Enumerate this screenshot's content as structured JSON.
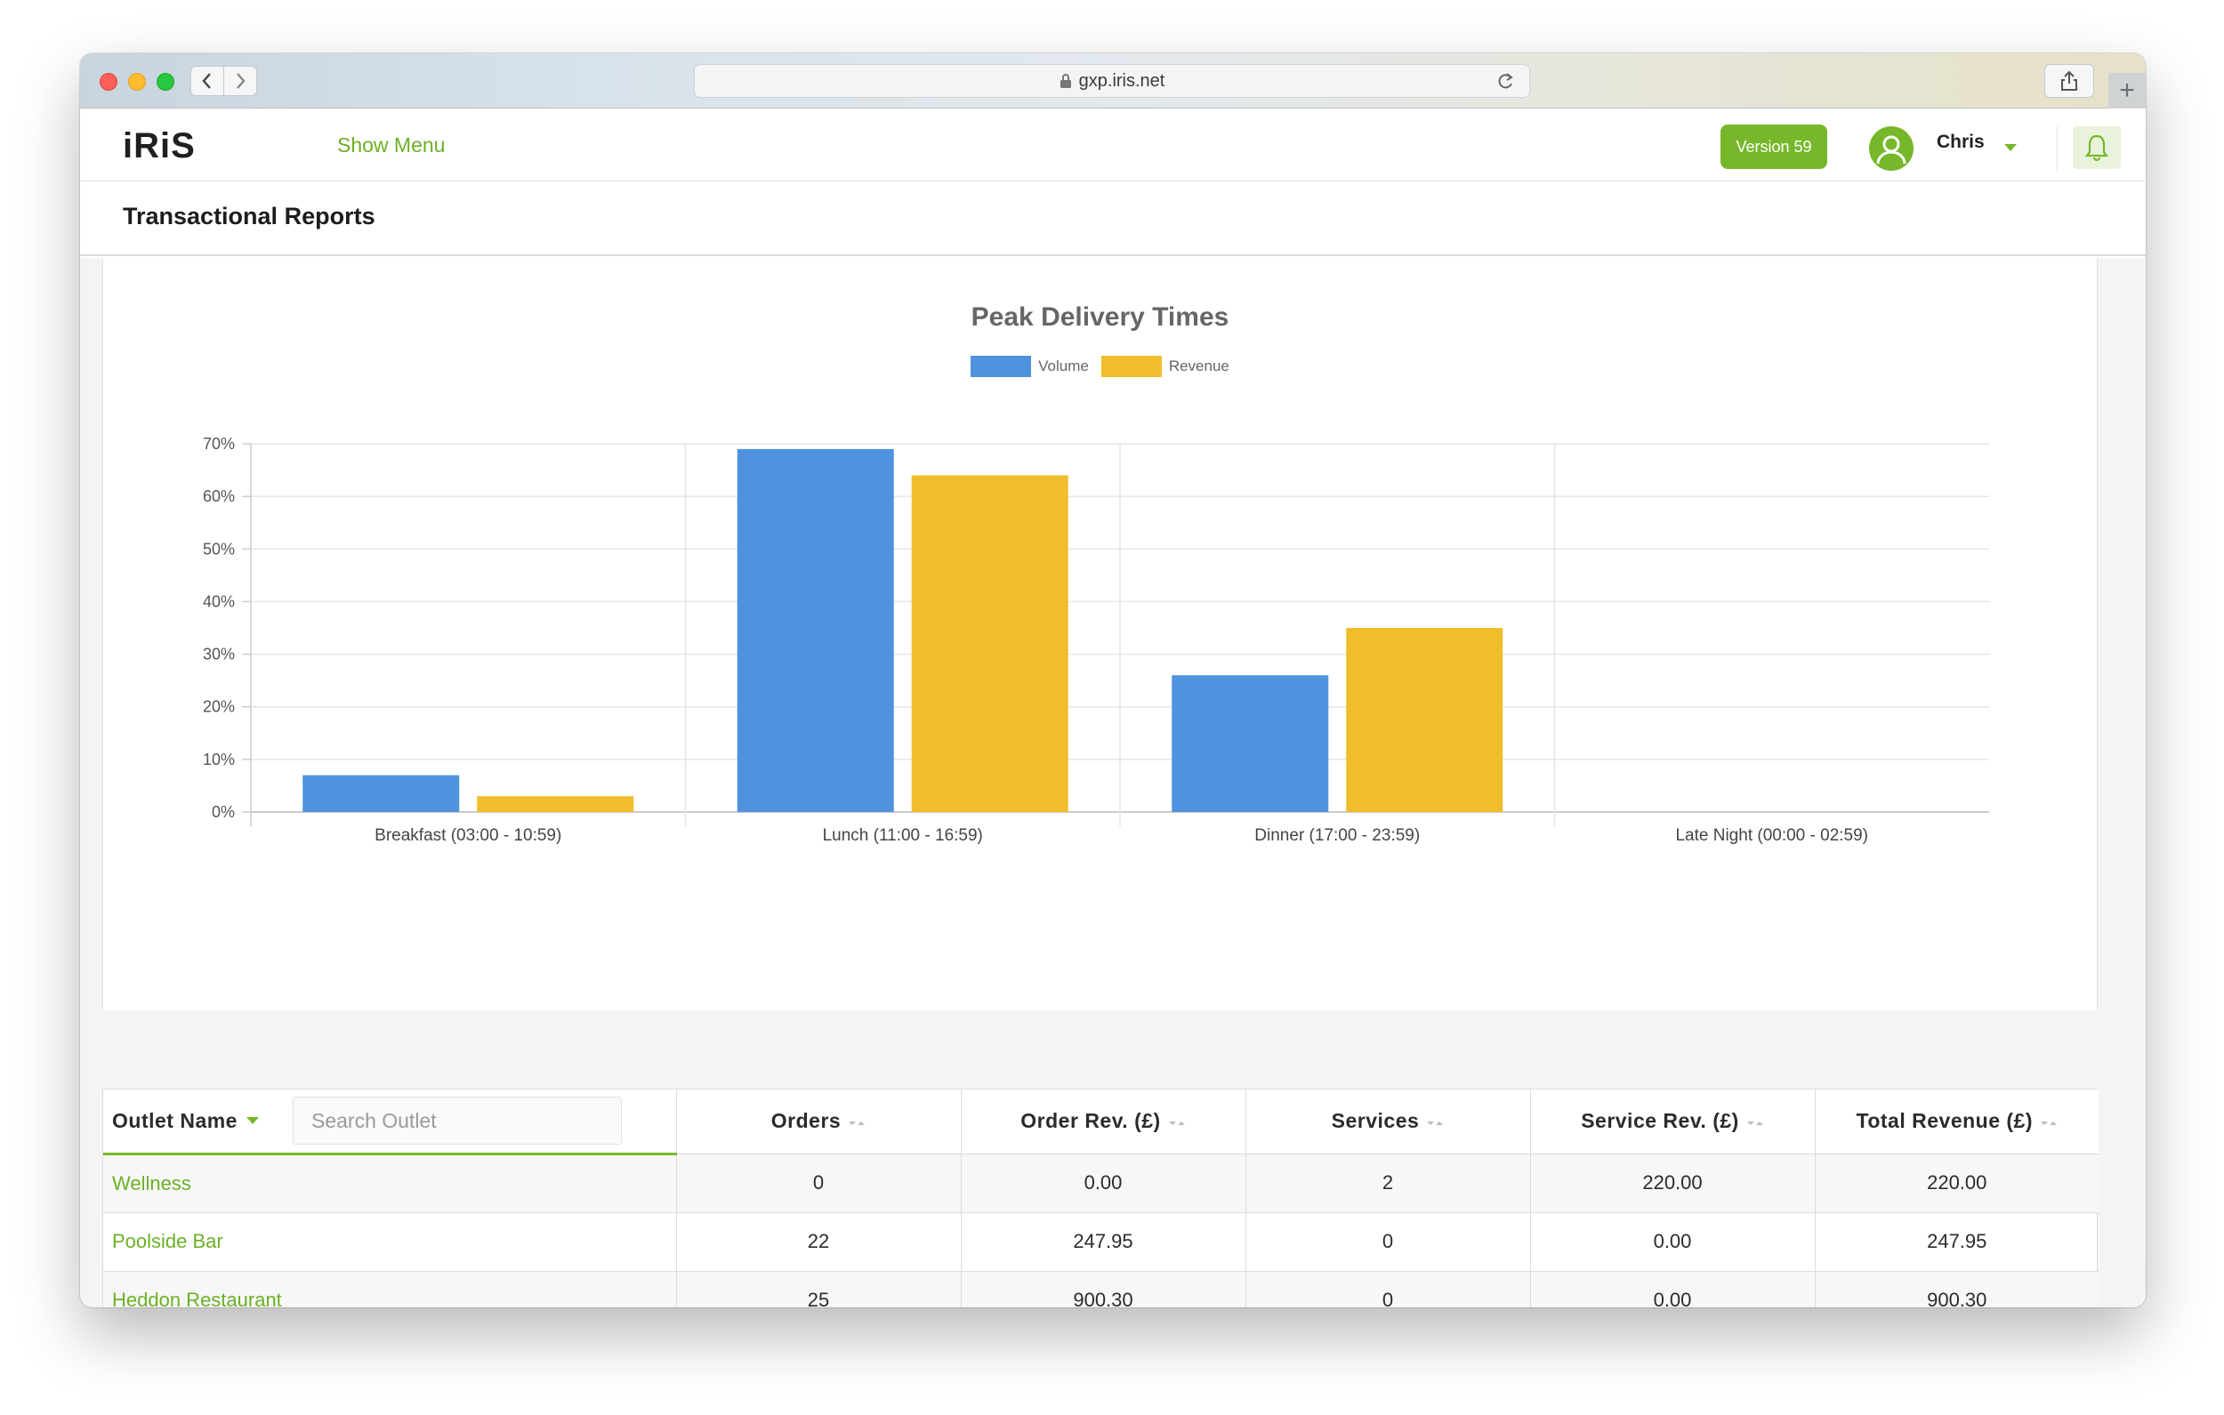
{
  "browser": {
    "url": "gxp.iris.net"
  },
  "header": {
    "logo": "iRiS",
    "show_menu": "Show Menu",
    "version": "Version 59",
    "user": "Chris"
  },
  "page": {
    "title": "Transactional Reports"
  },
  "colors": {
    "accent": "#76b82a",
    "volume": "#4f93de",
    "revenue": "#f0bd2c"
  },
  "chart_data": {
    "type": "bar",
    "title": "Peak Delivery Times",
    "categories": [
      "Breakfast (03:00 - 10:59)",
      "Lunch (11:00 - 16:59)",
      "Dinner (17:00 - 23:59)",
      "Late Night (00:00 - 02:59)"
    ],
    "series": [
      {
        "name": "Volume",
        "values": [
          7,
          69,
          26,
          0
        ]
      },
      {
        "name": "Revenue",
        "values": [
          3,
          64,
          35,
          0
        ]
      }
    ],
    "ylim": [
      0,
      70
    ],
    "yticks": [
      "0%",
      "10%",
      "20%",
      "30%",
      "40%",
      "50%",
      "60%",
      "70%"
    ],
    "legend": "top"
  },
  "table": {
    "outlet_header": "Outlet Name",
    "search_placeholder": "Search Outlet",
    "columns": [
      "Orders",
      "Order Rev. (£)",
      "Services",
      "Service Rev. (£)",
      "Total Revenue (£)"
    ],
    "rows": [
      {
        "outlet": "Wellness",
        "orders": "0",
        "order_rev": "0.00",
        "services": "2",
        "service_rev": "220.00",
        "total": "220.00"
      },
      {
        "outlet": "Poolside Bar",
        "orders": "22",
        "order_rev": "247.95",
        "services": "0",
        "service_rev": "0.00",
        "total": "247.95"
      },
      {
        "outlet": "Heddon Restaurant",
        "orders": "25",
        "order_rev": "900.30",
        "services": "0",
        "service_rev": "0.00",
        "total": "900.30"
      }
    ]
  }
}
